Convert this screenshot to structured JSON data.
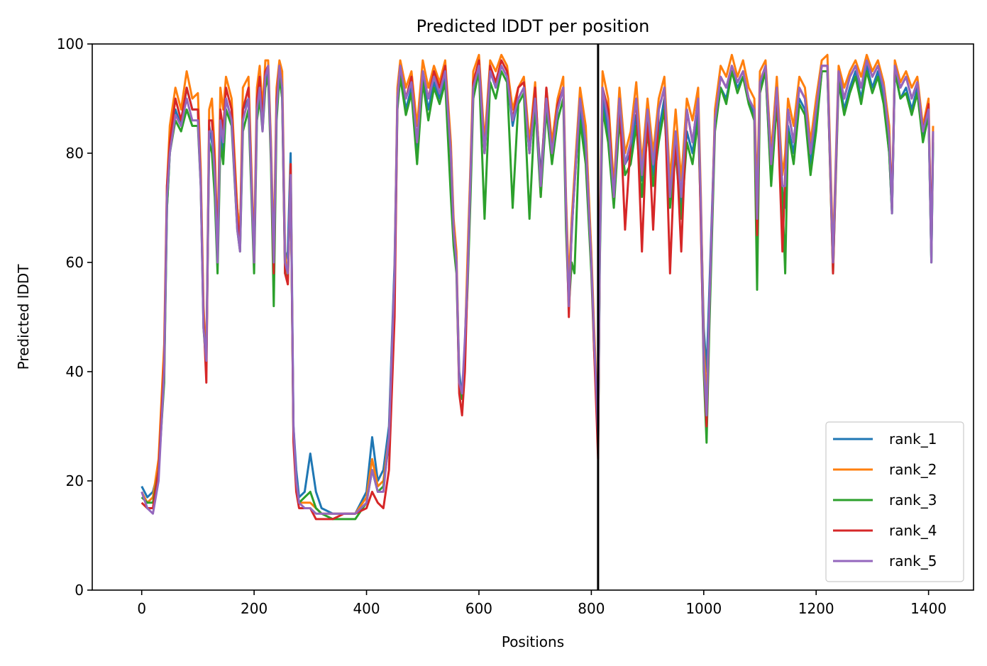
{
  "chart_data": {
    "type": "line",
    "title": "Predicted lDDT per position",
    "xlabel": "Positions",
    "ylabel": "Predicted lDDT",
    "xlim": [
      -88,
      1480
    ],
    "ylim": [
      0,
      100
    ],
    "xticks": [
      0,
      200,
      400,
      600,
      800,
      1000,
      1200,
      1400
    ],
    "yticks": [
      0,
      20,
      40,
      60,
      80,
      100
    ],
    "grid": false,
    "legend_position": "lower-right",
    "vline_x": 812,
    "vline_color": "#000000",
    "x": [
      0,
      10,
      20,
      30,
      40,
      45,
      50,
      60,
      70,
      80,
      90,
      100,
      105,
      110,
      115,
      120,
      125,
      130,
      135,
      140,
      145,
      150,
      160,
      170,
      175,
      180,
      190,
      200,
      205,
      210,
      215,
      220,
      225,
      230,
      235,
      240,
      245,
      250,
      255,
      260,
      265,
      270,
      275,
      280,
      290,
      300,
      310,
      320,
      340,
      360,
      380,
      400,
      410,
      420,
      430,
      440,
      450,
      455,
      460,
      470,
      480,
      490,
      500,
      510,
      520,
      530,
      540,
      550,
      555,
      560,
      565,
      570,
      575,
      580,
      585,
      590,
      600,
      610,
      620,
      630,
      640,
      650,
      660,
      670,
      680,
      690,
      700,
      710,
      720,
      730,
      740,
      750,
      755,
      760,
      765,
      770,
      780,
      790,
      800,
      805,
      810,
      812,
      815,
      820,
      830,
      840,
      850,
      860,
      870,
      880,
      890,
      900,
      910,
      920,
      930,
      940,
      950,
      960,
      970,
      980,
      990,
      995,
      1000,
      1005,
      1010,
      1020,
      1030,
      1040,
      1050,
      1060,
      1070,
      1080,
      1090,
      1095,
      1100,
      1110,
      1120,
      1130,
      1140,
      1145,
      1150,
      1160,
      1170,
      1180,
      1190,
      1200,
      1210,
      1220,
      1230,
      1240,
      1250,
      1260,
      1270,
      1280,
      1290,
      1300,
      1310,
      1320,
      1330,
      1335,
      1340,
      1350,
      1360,
      1370,
      1380,
      1390,
      1400,
      1405,
      1408
    ],
    "series": [
      {
        "name": "rank_1",
        "color": "#1f77b4",
        "values": [
          19,
          17,
          18,
          22,
          40,
          70,
          80,
          88,
          85,
          92,
          88,
          88,
          75,
          50,
          42,
          85,
          82,
          78,
          62,
          85,
          80,
          90,
          86,
          70,
          65,
          88,
          90,
          60,
          88,
          92,
          85,
          93,
          95,
          80,
          60,
          88,
          95,
          90,
          60,
          62,
          80,
          30,
          22,
          17,
          18,
          25,
          18,
          15,
          14,
          14,
          14,
          18,
          28,
          20,
          22,
          30,
          60,
          90,
          95,
          88,
          92,
          80,
          94,
          88,
          93,
          90,
          94,
          80,
          65,
          60,
          40,
          35,
          45,
          60,
          75,
          92,
          96,
          80,
          95,
          92,
          96,
          94,
          85,
          90,
          92,
          80,
          90,
          76,
          90,
          80,
          88,
          92,
          70,
          55,
          65,
          75,
          88,
          80,
          60,
          45,
          35,
          26,
          62,
          90,
          84,
          72,
          88,
          78,
          80,
          87,
          75,
          85,
          76,
          84,
          90,
          72,
          82,
          70,
          84,
          80,
          88,
          70,
          48,
          40,
          55,
          86,
          92,
          90,
          95,
          92,
          94,
          90,
          87,
          70,
          92,
          95,
          75,
          90,
          73,
          70,
          85,
          80,
          90,
          88,
          78,
          85,
          95,
          95,
          60,
          94,
          88,
          92,
          95,
          90,
          96,
          92,
          95,
          90,
          80,
          69,
          95,
          90,
          92,
          88,
          92,
          83,
          88,
          60,
          82
        ]
      },
      {
        "name": "rank_2",
        "color": "#ff7f0e",
        "values": [
          18,
          16,
          17,
          24,
          45,
          74,
          85,
          92,
          88,
          95,
          90,
          91,
          77,
          52,
          42,
          88,
          90,
          80,
          63,
          92,
          88,
          94,
          90,
          70,
          65,
          92,
          94,
          62,
          92,
          96,
          88,
          97,
          97,
          82,
          62,
          92,
          97,
          95,
          62,
          56,
          78,
          28,
          19,
          16,
          16,
          16,
          15,
          14,
          14,
          14,
          14,
          17,
          24,
          19,
          20,
          28,
          58,
          92,
          97,
          92,
          95,
          85,
          97,
          92,
          96,
          93,
          97,
          82,
          68,
          62,
          38,
          35,
          45,
          62,
          78,
          95,
          98,
          82,
          97,
          95,
          98,
          96,
          88,
          92,
          94,
          82,
          93,
          72,
          92,
          82,
          90,
          94,
          72,
          56,
          68,
          76,
          92,
          85,
          62,
          48,
          35,
          28,
          65,
          95,
          90,
          74,
          92,
          80,
          84,
          93,
          78,
          90,
          80,
          90,
          94,
          75,
          88,
          75,
          90,
          86,
          92,
          72,
          45,
          35,
          50,
          88,
          96,
          94,
          98,
          94,
          97,
          92,
          90,
          72,
          95,
          97,
          80,
          94,
          76,
          80,
          90,
          85,
          94,
          92,
          82,
          90,
          97,
          98,
          62,
          96,
          92,
          95,
          97,
          94,
          98,
          95,
          97,
          93,
          85,
          70,
          97,
          93,
          95,
          92,
          94,
          85,
          90,
          62,
          85
        ]
      },
      {
        "name": "rank_3",
        "color": "#2ca02c",
        "values": [
          17,
          16,
          16,
          22,
          38,
          70,
          80,
          86,
          84,
          88,
          85,
          85,
          74,
          48,
          41,
          82,
          80,
          72,
          58,
          82,
          78,
          88,
          85,
          66,
          62,
          84,
          88,
          58,
          86,
          90,
          84,
          92,
          94,
          78,
          52,
          86,
          94,
          90,
          58,
          57,
          76,
          28,
          19,
          16,
          17,
          18,
          15,
          14,
          13,
          13,
          13,
          16,
          22,
          18,
          19,
          27,
          55,
          88,
          94,
          87,
          91,
          78,
          93,
          86,
          92,
          89,
          93,
          72,
          63,
          58,
          37,
          35,
          44,
          56,
          72,
          90,
          95,
          68,
          93,
          90,
          95,
          93,
          70,
          89,
          91,
          68,
          89,
          72,
          88,
          78,
          86,
          90,
          66,
          52,
          60,
          58,
          86,
          78,
          58,
          44,
          34,
          26,
          60,
          88,
          82,
          70,
          86,
          76,
          78,
          85,
          72,
          84,
          74,
          82,
          88,
          70,
          80,
          68,
          82,
          78,
          86,
          68,
          40,
          27,
          48,
          84,
          92,
          89,
          95,
          91,
          94,
          89,
          86,
          55,
          91,
          95,
          74,
          89,
          72,
          58,
          84,
          78,
          89,
          87,
          76,
          84,
          95,
          95,
          58,
          93,
          87,
          91,
          94,
          89,
          95,
          91,
          94,
          89,
          80,
          69,
          95,
          90,
          91,
          87,
          91,
          82,
          87,
          60,
          82
        ]
      },
      {
        "name": "rank_4",
        "color": "#d62728",
        "values": [
          16,
          15,
          15,
          22,
          42,
          74,
          82,
          90,
          86,
          92,
          88,
          88,
          75,
          50,
          38,
          86,
          86,
          78,
          62,
          88,
          84,
          92,
          88,
          68,
          64,
          88,
          92,
          60,
          90,
          94,
          86,
          95,
          96,
          80,
          58,
          90,
          96,
          92,
          58,
          56,
          78,
          27,
          18,
          15,
          15,
          15,
          13,
          13,
          13,
          14,
          14,
          15,
          18,
          16,
          15,
          22,
          50,
          90,
          96,
          90,
          94,
          82,
          95,
          90,
          95,
          92,
          96,
          80,
          66,
          60,
          36,
          32,
          40,
          58,
          76,
          93,
          97,
          80,
          96,
          93,
          97,
          95,
          86,
          92,
          93,
          80,
          92,
          74,
          92,
          80,
          89,
          92,
          70,
          50,
          66,
          74,
          90,
          82,
          60,
          44,
          30,
          24,
          64,
          92,
          88,
          72,
          90,
          66,
          82,
          90,
          62,
          88,
          66,
          88,
          92,
          58,
          84,
          62,
          88,
          82,
          90,
          66,
          42,
          30,
          52,
          86,
          94,
          92,
          96,
          93,
          95,
          90,
          88,
          65,
          93,
          96,
          78,
          92,
          62,
          76,
          88,
          82,
          92,
          90,
          80,
          88,
          96,
          96,
          58,
          95,
          90,
          94,
          96,
          92,
          97,
          94,
          96,
          92,
          83,
          70,
          96,
          92,
          94,
          90,
          93,
          84,
          89,
          62,
          84
        ]
      },
      {
        "name": "rank_5",
        "color": "#9467bd",
        "values": [
          18,
          15,
          14,
          20,
          40,
          72,
          80,
          87,
          85,
          90,
          86,
          86,
          74,
          48,
          42,
          84,
          84,
          76,
          60,
          86,
          82,
          90,
          86,
          66,
          62,
          86,
          90,
          60,
          88,
          92,
          84,
          94,
          96,
          80,
          60,
          88,
          96,
          92,
          60,
          58,
          76,
          30,
          20,
          16,
          15,
          15,
          14,
          14,
          14,
          14,
          14,
          16,
          22,
          18,
          18,
          28,
          58,
          90,
          96,
          90,
          93,
          82,
          95,
          90,
          94,
          91,
          95,
          80,
          66,
          60,
          38,
          36,
          46,
          58,
          76,
          92,
          96,
          80,
          95,
          92,
          96,
          94,
          86,
          90,
          92,
          80,
          90,
          74,
          90,
          80,
          88,
          92,
          70,
          52,
          66,
          74,
          90,
          82,
          60,
          46,
          34,
          28,
          62,
          92,
          86,
          72,
          90,
          78,
          82,
          90,
          76,
          88,
          78,
          88,
          92,
          72,
          84,
          72,
          88,
          82,
          90,
          70,
          42,
          32,
          52,
          86,
          94,
          92,
          96,
          93,
          95,
          90,
          88,
          68,
          93,
          96,
          78,
          92,
          74,
          74,
          88,
          82,
          92,
          90,
          80,
          88,
          96,
          96,
          60,
          95,
          90,
          94,
          96,
          92,
          97,
          94,
          96,
          92,
          83,
          69,
          96,
          92,
          94,
          90,
          93,
          84,
          88,
          60,
          84
        ]
      }
    ]
  }
}
